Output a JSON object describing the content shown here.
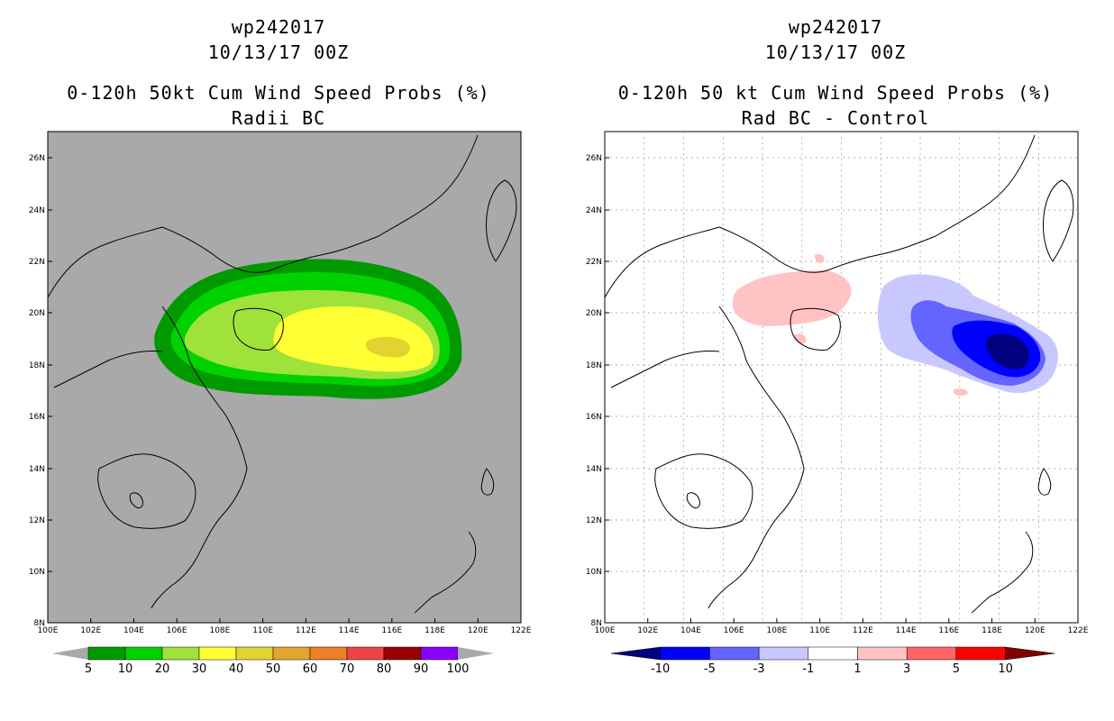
{
  "panels": [
    {
      "storm_id": "wp242017",
      "datetime": "10/13/17 00Z",
      "product": "0-120h 50kt Cum Wind Speed Probs (%)",
      "subtitle": "Radii BC",
      "background_color": "#a9a9a9",
      "lat_labels": [
        "26N",
        "24N",
        "22N",
        "20N",
        "18N",
        "16N",
        "14N",
        "12N",
        "10N",
        "8N"
      ],
      "lon_labels": [
        "100E",
        "102E",
        "104E",
        "106E",
        "108E",
        "110E",
        "112E",
        "114E",
        "116E",
        "118E",
        "120E",
        "122E"
      ],
      "colorbar": {
        "colors": [
          "#009a00",
          "#00d200",
          "#9fe23a",
          "#ffff33",
          "#e2d330",
          "#e3a52e",
          "#ec7f29",
          "#ee4444",
          "#990000",
          "#8800ff"
        ],
        "labels": [
          "5",
          "10",
          "20",
          "30",
          "40",
          "50",
          "60",
          "70",
          "80",
          "90",
          "100"
        ]
      }
    },
    {
      "storm_id": "wp242017",
      "datetime": "10/13/17 00Z",
      "product": "0-120h 50 kt Cum Wind Speed Probs (%)",
      "subtitle": "Rad BC - Control",
      "background_color": "#ffffff",
      "lat_labels": [
        "26N",
        "24N",
        "22N",
        "20N",
        "18N",
        "16N",
        "14N",
        "12N",
        "10N",
        "8N"
      ],
      "lon_labels": [
        "100E",
        "102E",
        "104E",
        "106E",
        "108E",
        "110E",
        "112E",
        "114E",
        "116E",
        "118E",
        "120E",
        "122E"
      ],
      "colorbar": {
        "colors": [
          "#000080",
          "#0000ff",
          "#6464ff",
          "#c8c8ff",
          "#ffffff",
          "#ffc3c3",
          "#ff6464",
          "#ff0000",
          "#800000"
        ],
        "labels": [
          "-10",
          "-5",
          "-3",
          "-1",
          "1",
          "3",
          "5",
          "10"
        ]
      }
    }
  ]
}
